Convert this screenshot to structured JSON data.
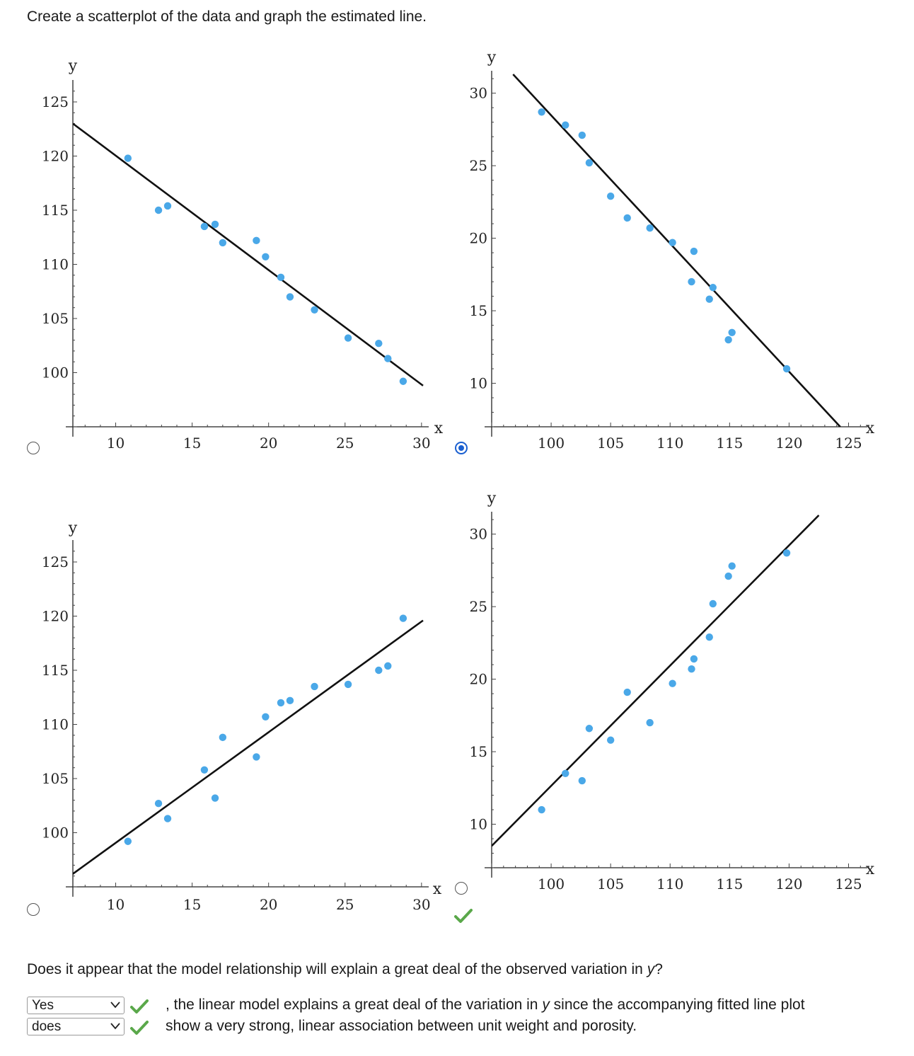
{
  "prompt": "Create a scatterplot of the data and graph the estimated line.",
  "icons": {
    "radio": "radio-button-icon",
    "check": "green-checkmark-icon",
    "chevron": "chevron-down-icon"
  },
  "colors": {
    "points": "#4aa8e8",
    "line": "#111111",
    "radio_selected": "#1a5fd0",
    "check": "#5aa84a"
  },
  "options": [
    {
      "id": "a",
      "selected": false,
      "correct": false
    },
    {
      "id": "b",
      "selected": true,
      "correct": true
    },
    {
      "id": "c",
      "selected": false,
      "correct": false
    },
    {
      "id": "d",
      "selected": false,
      "correct": false
    }
  ],
  "chart_data": [
    {
      "type": "scatter",
      "xlabel": "x",
      "ylabel": "y",
      "xlim": [
        7.2,
        30.1
      ],
      "ylim": [
        95,
        126.7
      ],
      "xticks": [
        10,
        15,
        20,
        25,
        30
      ],
      "yticks": [
        100,
        105,
        110,
        115,
        120,
        125
      ],
      "points": [
        [
          10.8,
          119.8
        ],
        [
          12.8,
          115
        ],
        [
          13.4,
          115.4
        ],
        [
          15.8,
          113.5
        ],
        [
          16.5,
          113.7
        ],
        [
          17,
          112
        ],
        [
          19.2,
          112.2
        ],
        [
          19.8,
          110.7
        ],
        [
          20.8,
          108.8
        ],
        [
          21.4,
          107
        ],
        [
          23,
          105.8
        ],
        [
          25.2,
          103.2
        ],
        [
          27.2,
          102.7
        ],
        [
          27.8,
          101.3
        ],
        [
          28.8,
          99.2
        ]
      ],
      "line": [
        [
          7.2,
          123
        ],
        [
          30.1,
          98.8
        ]
      ]
    },
    {
      "type": "scatter",
      "xlabel": "x",
      "ylabel": "y",
      "xlim": [
        95,
        126.1
      ],
      "ylim": [
        7,
        31.3
      ],
      "xticks": [
        100,
        105,
        110,
        115,
        120,
        125
      ],
      "yticks": [
        10,
        15,
        20,
        25,
        30
      ],
      "points": [
        [
          99.2,
          28.7
        ],
        [
          101.2,
          27.8
        ],
        [
          102.6,
          27.1
        ],
        [
          103.2,
          25.2
        ],
        [
          105,
          22.9
        ],
        [
          106.4,
          21.4
        ],
        [
          108.3,
          20.7
        ],
        [
          110.2,
          19.7
        ],
        [
          111.8,
          17
        ],
        [
          112,
          19.1
        ],
        [
          113.3,
          15.8
        ],
        [
          113.6,
          16.6
        ],
        [
          114.9,
          13
        ],
        [
          115.2,
          13.5
        ],
        [
          119.8,
          11
        ]
      ],
      "line": [
        [
          96.8,
          31.3
        ],
        [
          124.3,
          7
        ]
      ]
    },
    {
      "type": "scatter",
      "xlabel": "x",
      "ylabel": "y",
      "xlim": [
        7.2,
        30.1
      ],
      "ylim": [
        95,
        126.7
      ],
      "xticks": [
        10,
        15,
        20,
        25,
        30
      ],
      "yticks": [
        100,
        105,
        110,
        115,
        120,
        125
      ],
      "points": [
        [
          10.8,
          99.2
        ],
        [
          12.8,
          102.7
        ],
        [
          13.4,
          101.3
        ],
        [
          15.8,
          105.8
        ],
        [
          16.5,
          103.2
        ],
        [
          17,
          108.8
        ],
        [
          19.2,
          107
        ],
        [
          19.8,
          110.7
        ],
        [
          20.8,
          112
        ],
        [
          21.4,
          112.2
        ],
        [
          23,
          113.5
        ],
        [
          25.2,
          113.7
        ],
        [
          27.2,
          115
        ],
        [
          27.8,
          115.4
        ],
        [
          28.8,
          119.8
        ]
      ],
      "line": [
        [
          7.2,
          96.2
        ],
        [
          30.1,
          119.6
        ]
      ]
    },
    {
      "type": "scatter",
      "xlabel": "x",
      "ylabel": "y",
      "xlim": [
        95,
        126.1
      ],
      "ylim": [
        7,
        31.3
      ],
      "xticks": [
        100,
        105,
        110,
        115,
        120,
        125
      ],
      "yticks": [
        10,
        15,
        20,
        25,
        30
      ],
      "points": [
        [
          99.2,
          11
        ],
        [
          101.2,
          13.5
        ],
        [
          102.6,
          13
        ],
        [
          103.2,
          16.6
        ],
        [
          105,
          15.8
        ],
        [
          106.4,
          19.1
        ],
        [
          108.3,
          17
        ],
        [
          110.2,
          19.7
        ],
        [
          111.8,
          20.7
        ],
        [
          112,
          21.4
        ],
        [
          113.3,
          22.9
        ],
        [
          113.6,
          25.2
        ],
        [
          114.9,
          27.1
        ],
        [
          115.2,
          27.8
        ],
        [
          119.8,
          28.7
        ]
      ],
      "line": [
        [
          95,
          8.5
        ],
        [
          122.5,
          31.3
        ]
      ]
    }
  ],
  "question": {
    "text": "Does it appear that the model relationship will explain a great deal of the observed variation in ",
    "var": "y",
    "end": "?"
  },
  "answer": {
    "select1_value": "Yes",
    "select2_value": "does",
    "line1_prefix": ", the linear model explains a great deal of the variation in ",
    "line1_var": "y",
    "line1_suffix": " since the accompanying fitted line plot",
    "line2": "show a very strong, linear association between unit weight and porosity."
  }
}
